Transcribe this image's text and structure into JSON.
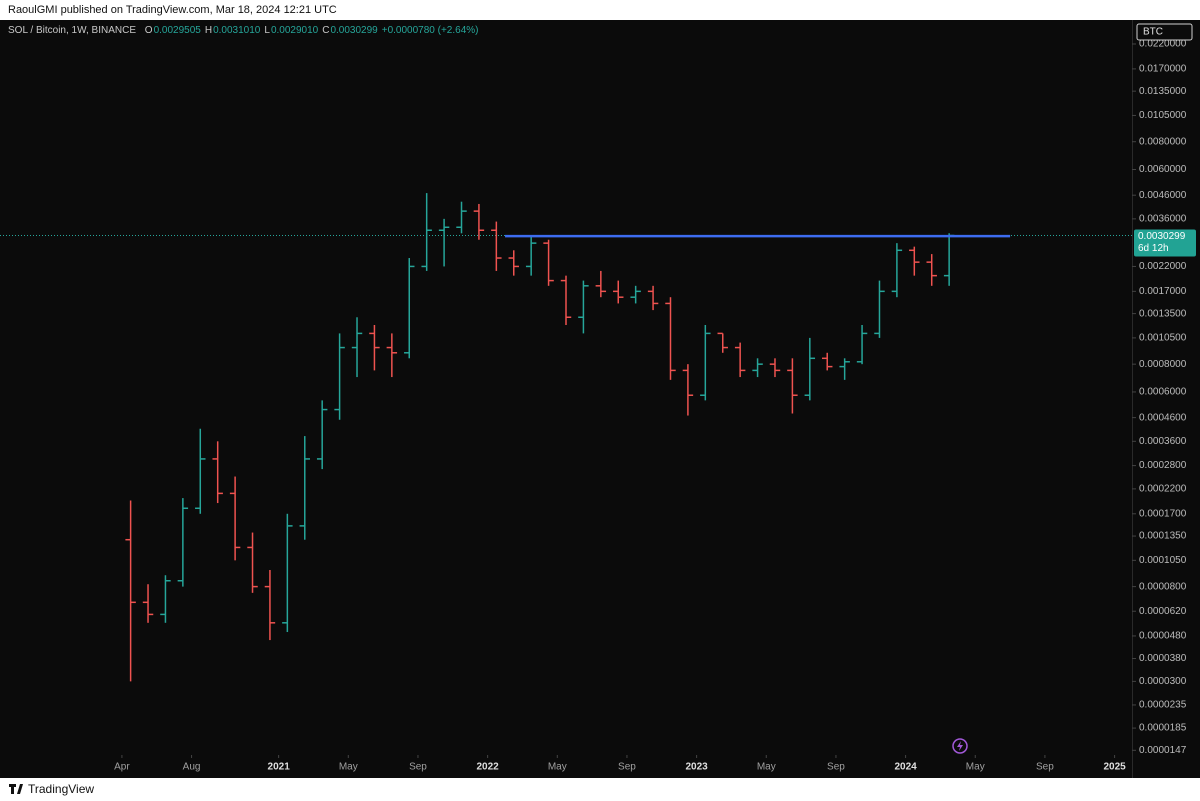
{
  "header": "RaoulGMI published on TradingView.com, Mar 18, 2024 12:21 UTC",
  "footer": "TradingView",
  "chart_data": {
    "type": "ohlc",
    "symbol": "SOL / Bitcoin, 1W, BINANCE",
    "legend": [
      {
        "key": "O",
        "value": "0.0029505"
      },
      {
        "key": "H",
        "value": "0.0031010"
      },
      {
        "key": "L",
        "value": "0.0029010"
      },
      {
        "key": "C",
        "value": "0.0030299"
      }
    ],
    "change": "+0.0000780 (+2.64%)",
    "currency": "BTC",
    "last_price": 0.0030299,
    "countdown": "6d 12h",
    "up_color": "#26a69a",
    "down_color": "#ef5350",
    "log_scale": true,
    "x": [
      "2020-04",
      "2020-05",
      "2020-06",
      "2020-07",
      "2020-08",
      "2020-09",
      "2020-10",
      "2020-11",
      "2020-12",
      "2021-01",
      "2021-02",
      "2021-03",
      "2021-04",
      "2021-05",
      "2021-06",
      "2021-07",
      "2021-08",
      "2021-09",
      "2021-10",
      "2021-11",
      "2021-12",
      "2022-01",
      "2022-02",
      "2022-03",
      "2022-04",
      "2022-05",
      "2022-06",
      "2022-07",
      "2022-08",
      "2022-09",
      "2022-10",
      "2022-11",
      "2022-12",
      "2023-01",
      "2023-02",
      "2023-03",
      "2023-04",
      "2023-05",
      "2023-06",
      "2023-07",
      "2023-08",
      "2023-09",
      "2023-10",
      "2023-11",
      "2023-12",
      "2024-01",
      "2024-02",
      "2024-03"
    ],
    "open": [
      0.00013,
      6.8e-05,
      6e-05,
      8.5e-05,
      0.00018,
      0.0003,
      0.00021,
      0.00012,
      8e-05,
      5.5e-05,
      0.00015,
      0.0003,
      0.0005,
      0.00095,
      0.0011,
      0.00095,
      0.0009,
      0.0022,
      0.0032,
      0.0033,
      0.0039,
      0.0032,
      0.0024,
      0.0022,
      0.0028,
      0.0019,
      0.0013,
      0.0018,
      0.0017,
      0.0016,
      0.0017,
      0.0015,
      0.00075,
      0.00058,
      0.0011,
      0.00095,
      0.00075,
      0.0008,
      0.00075,
      0.00058,
      0.00085,
      0.00078,
      0.00082,
      0.0011,
      0.0017,
      0.0026,
      0.0023,
      0.002
    ],
    "high": [
      0.000195,
      8.2e-05,
      9e-05,
      0.0002,
      0.00041,
      0.00036,
      0.00025,
      0.00014,
      9.5e-05,
      0.00017,
      0.00038,
      0.00055,
      0.0011,
      0.0013,
      0.0012,
      0.0011,
      0.0024,
      0.0047,
      0.0036,
      0.0043,
      0.0042,
      0.0035,
      0.0026,
      0.003,
      0.0029,
      0.002,
      0.0019,
      0.0021,
      0.0019,
      0.0018,
      0.0018,
      0.0016,
      0.0008,
      0.0012,
      0.0011,
      0.001,
      0.00085,
      0.00085,
      0.00085,
      0.00105,
      0.0009,
      0.00085,
      0.0012,
      0.0019,
      0.0028,
      0.0027,
      0.0025,
      0.003101
    ],
    "low": [
      3e-05,
      5.5e-05,
      5.5e-05,
      8e-05,
      0.00017,
      0.00019,
      0.000105,
      7.5e-05,
      4.6e-05,
      5e-05,
      0.00013,
      0.00027,
      0.00045,
      0.0007,
      0.00075,
      0.0007,
      0.00085,
      0.0021,
      0.0022,
      0.0031,
      0.0029,
      0.0021,
      0.002,
      0.002,
      0.0018,
      0.0012,
      0.0011,
      0.0016,
      0.0015,
      0.0015,
      0.0014,
      0.00068,
      0.00047,
      0.00055,
      0.0009,
      0.0007,
      0.0007,
      0.0007,
      0.00048,
      0.00055,
      0.00075,
      0.00068,
      0.0008,
      0.00105,
      0.0016,
      0.002,
      0.0018,
      0.0018
    ],
    "close": [
      6.8e-05,
      6e-05,
      8.5e-05,
      0.00018,
      0.0003,
      0.00021,
      0.00012,
      8e-05,
      5.5e-05,
      0.00015,
      0.0003,
      0.0005,
      0.00095,
      0.0011,
      0.00095,
      0.0009,
      0.0022,
      0.0032,
      0.0033,
      0.0039,
      0.0032,
      0.0024,
      0.0022,
      0.0028,
      0.0019,
      0.0013,
      0.0018,
      0.0017,
      0.0016,
      0.0017,
      0.0015,
      0.00075,
      0.00058,
      0.0011,
      0.00095,
      0.00075,
      0.0008,
      0.00075,
      0.00058,
      0.00085,
      0.00078,
      0.00082,
      0.0011,
      0.0017,
      0.0026,
      0.0023,
      0.002,
      0.0030299
    ],
    "line": {
      "value": 0.00301,
      "x": [
        "2022-02",
        "2024-07"
      ],
      "color": "#3d6cf0"
    },
    "xlim": [
      "2019-09",
      "2025-02"
    ],
    "xticks": [
      {
        "value": "2020-04",
        "label": "Apr"
      },
      {
        "value": "2020-08",
        "label": "Aug"
      },
      {
        "value": "2021-01",
        "label": "2021"
      },
      {
        "value": "2021-05",
        "label": "May"
      },
      {
        "value": "2021-09",
        "label": "Sep"
      },
      {
        "value": "2022-01",
        "label": "2022"
      },
      {
        "value": "2022-05",
        "label": "May"
      },
      {
        "value": "2022-09",
        "label": "Sep"
      },
      {
        "value": "2023-01",
        "label": "2023"
      },
      {
        "value": "2023-05",
        "label": "May"
      },
      {
        "value": "2023-09",
        "label": "Sep"
      },
      {
        "value": "2024-01",
        "label": "2024"
      },
      {
        "value": "2024-05",
        "label": "May"
      },
      {
        "value": "2024-09",
        "label": "Sep"
      },
      {
        "value": "2025-01",
        "label": "2025"
      }
    ],
    "ylim": [
      1.4e-05,
      0.0282
    ],
    "yticks": [
      {
        "value": 0.022,
        "label": "0.0220000"
      },
      {
        "value": 0.017,
        "label": "0.0170000"
      },
      {
        "value": 0.0135,
        "label": "0.0135000"
      },
      {
        "value": 0.0105,
        "label": "0.0105000"
      },
      {
        "value": 0.008,
        "label": "0.0080000"
      },
      {
        "value": 0.006,
        "label": "0.0060000"
      },
      {
        "value": 0.0046,
        "label": "0.0046000"
      },
      {
        "value": 0.0036,
        "label": "0.0036000"
      },
      {
        "value": 0.0022,
        "label": "0.0022000"
      },
      {
        "value": 0.0017,
        "label": "0.0017000"
      },
      {
        "value": 0.00135,
        "label": "0.0013500"
      },
      {
        "value": 0.00105,
        "label": "0.0010500"
      },
      {
        "value": 0.0008,
        "label": "0.0008000"
      },
      {
        "value": 0.0006,
        "label": "0.0006000"
      },
      {
        "value": 0.00046,
        "label": "0.0004600"
      },
      {
        "value": 0.00036,
        "label": "0.0003600"
      },
      {
        "value": 0.00028,
        "label": "0.0002800"
      },
      {
        "value": 0.00022,
        "label": "0.0002200"
      },
      {
        "value": 0.00017,
        "label": "0.0001700"
      },
      {
        "value": 0.000135,
        "label": "0.0001350"
      },
      {
        "value": 0.000105,
        "label": "0.0001050"
      },
      {
        "value": 8e-05,
        "label": "0.0000800"
      },
      {
        "value": 6.2e-05,
        "label": "0.0000620"
      },
      {
        "value": 4.8e-05,
        "label": "0.0000480"
      },
      {
        "value": 3.8e-05,
        "label": "0.0000380"
      },
      {
        "value": 3e-05,
        "label": "0.0000300"
      },
      {
        "value": 2.35e-05,
        "label": "0.0000235"
      },
      {
        "value": 1.85e-05,
        "label": "0.0000185"
      },
      {
        "value": 1.47e-05,
        "label": "0.0000147"
      }
    ]
  }
}
